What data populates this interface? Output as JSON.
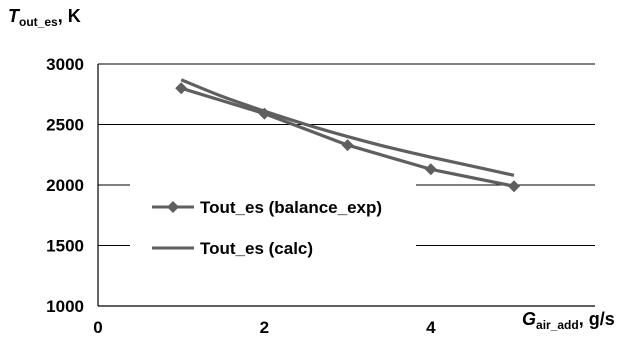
{
  "chart_data": {
    "type": "line",
    "title": "",
    "xlabel": {
      "symbol": "G",
      "subscript": "air_add",
      "unit": ", g/s"
    },
    "ylabel": {
      "symbol": "T",
      "subscript": "out_es",
      "unit": ", K"
    },
    "xlim": [
      0,
      5
    ],
    "ylim": [
      1000,
      3000
    ],
    "xticks": [
      0,
      2,
      4
    ],
    "yticks": [
      1000,
      1500,
      2000,
      2500,
      3000
    ],
    "grid": {
      "horizontal": true,
      "vertical": false
    },
    "legend_position": "left-middle",
    "series": [
      {
        "name": "Tout_es (balance_exp)",
        "marker": "diamond",
        "color": "#5f5f5f",
        "x": [
          1,
          2,
          3,
          4,
          5
        ],
        "y": [
          2800,
          2590,
          2330,
          2130,
          1990
        ]
      },
      {
        "name": "Tout_es (calc)",
        "marker": "none",
        "color": "#5f5f5f",
        "x": [
          1,
          1.5,
          2,
          2.5,
          3,
          3.5,
          4,
          4.5,
          5
        ],
        "y": [
          2870,
          2730,
          2610,
          2500,
          2400,
          2310,
          2230,
          2155,
          2080
        ]
      }
    ]
  }
}
